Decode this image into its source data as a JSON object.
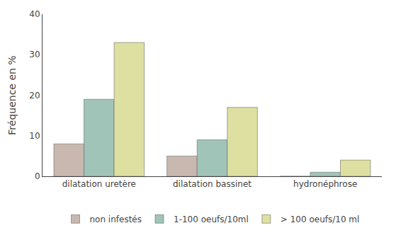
{
  "chart_data": {
    "type": "bar",
    "categories": [
      "dilatation uretère",
      "dilatation bassinet",
      "hydronéphrose"
    ],
    "series": [
      {
        "name": "non infestés",
        "color": "#c8b8b0",
        "values": [
          8,
          5,
          0
        ]
      },
      {
        "name": "1-100 oeufs/10ml",
        "color": "#a0c4b8",
        "values": [
          19,
          9,
          1
        ]
      },
      {
        "name": "> 100 oeufs/10 ml",
        "color": "#dde0a0",
        "values": [
          33,
          17,
          4
        ]
      }
    ],
    "ylabel": "Fréquence en %",
    "ylim": [
      0,
      40
    ],
    "yticks": [
      0,
      10,
      20,
      30,
      40
    ],
    "grid": false,
    "legend": "bottom"
  }
}
